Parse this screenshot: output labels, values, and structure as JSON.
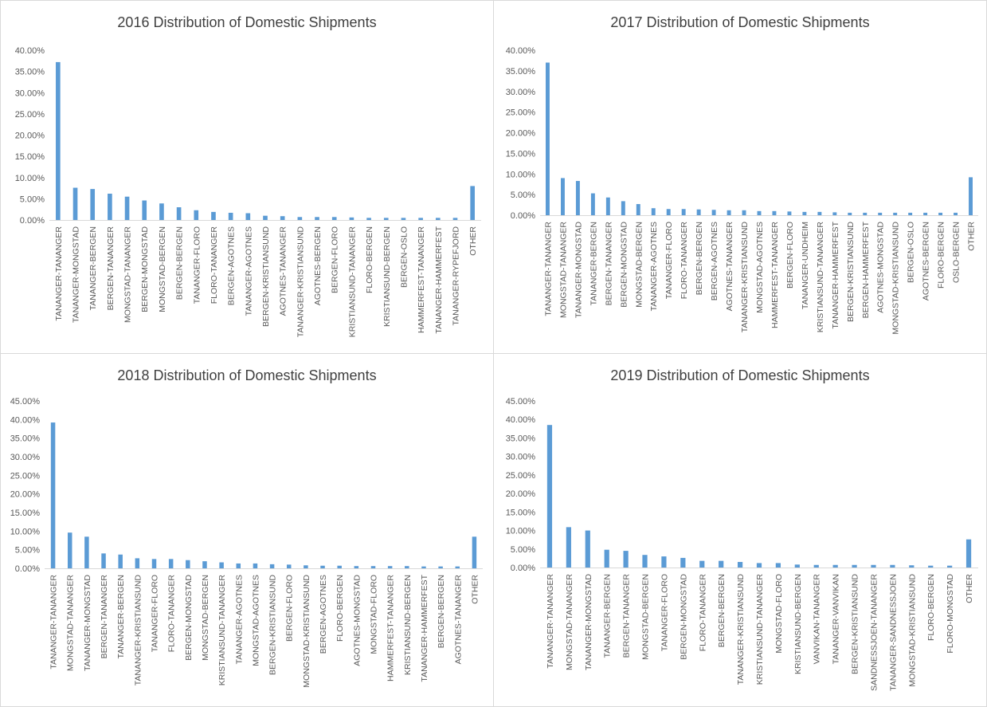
{
  "chart_data": [
    {
      "type": "bar",
      "title": "2016 Distribution of Domestic Shipments",
      "yticks": [
        "0.00%",
        "5.00%",
        "10.00%",
        "15.00%",
        "20.00%",
        "25.00%",
        "30.00%",
        "35.00%",
        "40.00%"
      ],
      "ylim": [
        0,
        40
      ],
      "grid": false,
      "bar_color": "#5b9bd5",
      "categories": [
        "TANANGER-TANANGER",
        "TANANGER-MONGSTAD",
        "TANANGER-BERGEN",
        "BERGEN-TANANGER",
        "MONGSTAD-TANANGER",
        "BERGEN-MONGSTAD",
        "MONGSTAD-BERGEN",
        "BERGEN-BERGEN",
        "TANANGER-FLORO",
        "FLORO-TANANGER",
        "BERGEN-AGOTNES",
        "TANANGER-AGOTNES",
        "BERGEN-KRISTIANSUND",
        "AGOTNES-TANANGER",
        "TANANGER-KRISTIANSUND",
        "AGOTNES-BERGEN",
        "BERGEN-FLORO",
        "KRISTIANSUND-TANANGER",
        "FLORO-BERGEN",
        "KRISTIANSUND-BERGEN",
        "BERGEN-OSLO",
        "HAMMERFEST-TANANGER",
        "TANANGER-HAMMERFEST",
        "TANANGER-RYPEFJORD",
        "OTHER"
      ],
      "values": [
        37.2,
        7.6,
        7.3,
        6.2,
        5.5,
        4.6,
        3.9,
        3.0,
        2.3,
        1.9,
        1.7,
        1.6,
        1.0,
        0.9,
        0.7,
        0.7,
        0.7,
        0.6,
        0.5,
        0.5,
        0.5,
        0.5,
        0.5,
        0.5,
        8.0
      ]
    },
    {
      "type": "bar",
      "title": "2017 Distribution of Domestic Shipments",
      "yticks": [
        "0.00%",
        "5.00%",
        "10.00%",
        "15.00%",
        "20.00%",
        "25.00%",
        "30.00%",
        "35.00%",
        "40.00%"
      ],
      "ylim": [
        0,
        40
      ],
      "grid": false,
      "bar_color": "#5b9bd5",
      "categories": [
        "TANANGER-TANANGER",
        "MONGSTAD-TANANGER",
        "TANANGER-MONGSTAD",
        "TANANGER-BERGEN",
        "BERGEN-TANANGER",
        "BERGEN-MONGSTAD",
        "MONGSTAD-BERGEN",
        "TANANGER-AGOTNES",
        "TANANGER-FLORO",
        "FLORO-TANANGER",
        "BERGEN-BERGEN",
        "BERGEN-AGOTNES",
        "AGOTNES-TANANGER",
        "TANANGER-KRISTIANSUND",
        "MONGSTAD-AGOTNES",
        "HAMMERFEST-TANANGER",
        "BERGEN-FLORO",
        "TANANGER-UNDHEIM",
        "KRISTIANSUND-TANANGER",
        "TANANGER-HAMMERFEST",
        "BERGEN-KRISTIANSUND",
        "BERGEN-HAMMERFEST",
        "AGOTNES-MONGSTAD",
        "MONGSTAD-KRISTIANSUND",
        "BERGEN-OSLO",
        "AGOTNES-BERGEN",
        "FLORO-BERGEN",
        "OSLO-BERGEN",
        "OTHER"
      ],
      "values": [
        37.0,
        9.0,
        8.3,
        5.3,
        4.3,
        3.4,
        2.7,
        1.7,
        1.5,
        1.5,
        1.4,
        1.3,
        1.2,
        1.2,
        1.0,
        1.0,
        0.9,
        0.8,
        0.8,
        0.7,
        0.6,
        0.6,
        0.6,
        0.6,
        0.6,
        0.6,
        0.6,
        0.6,
        9.2
      ]
    },
    {
      "type": "bar",
      "title": "2018 Distribution of Domestic Shipments",
      "yticks": [
        "0.00%",
        "5.00%",
        "10.00%",
        "15.00%",
        "20.00%",
        "25.00%",
        "30.00%",
        "35.00%",
        "40.00%",
        "45.00%"
      ],
      "ylim": [
        0,
        45
      ],
      "grid": false,
      "bar_color": "#5b9bd5",
      "categories": [
        "TANANGER-TANANGER",
        "MONGSTAD-TANANGER",
        "TANANGER-MONGSTAD",
        "BERGEN-TANANGER",
        "TANANGER-BERGEN",
        "TANANGER-KRISTIANSUND",
        "TANANGER-FLORO",
        "FLORO-TANANGER",
        "BERGEN-MONGSTAD",
        "MONGSTAD-BERGEN",
        "KRISTIANSUND-TANANGER",
        "TANANGER-AGOTNES",
        "MONGSTAD-AGOTNES",
        "BERGEN-KRISTIANSUND",
        "BERGEN-FLORO",
        "MONGSTAD-KRISTIANSUND",
        "BERGEN-AGOTNES",
        "FLORO-BERGEN",
        "AGOTNES-MONGSTAD",
        "MONGSTAD-FLORO",
        "HAMMERFEST-TANANGER",
        "KRISTIANSUND-BERGEN",
        "TANANGER-HAMMERFEST",
        "BERGEN-BERGEN",
        "AGOTNES-TANANGER",
        "OTHER"
      ],
      "values": [
        39.2,
        9.6,
        8.5,
        4.0,
        3.7,
        2.7,
        2.5,
        2.5,
        2.2,
        1.9,
        1.6,
        1.3,
        1.3,
        1.1,
        1.0,
        0.8,
        0.7,
        0.7,
        0.6,
        0.6,
        0.6,
        0.6,
        0.5,
        0.5,
        0.5,
        8.5
      ]
    },
    {
      "type": "bar",
      "title": "2019 Distribution of Domestic Shipments",
      "yticks": [
        "0.00%",
        "5.00%",
        "10.00%",
        "15.00%",
        "20.00%",
        "25.00%",
        "30.00%",
        "35.00%",
        "40.00%",
        "45.00%"
      ],
      "ylim": [
        0,
        45
      ],
      "grid": false,
      "bar_color": "#5b9bd5",
      "categories": [
        "TANANGER-TANANGER",
        "MONGSTAD-TANANGER",
        "TANANGER-MONGSTAD",
        "TANANGER-BERGEN",
        "BERGEN-TANANGER",
        "MONGSTAD-BERGEN",
        "TANANGER-FLORO",
        "BERGEN-MONGSTAD",
        "FLORO-TANANGER",
        "BERGEN-BERGEN",
        "TANANGER-KRISTIANSUND",
        "KRISTIANSUND-TANANGER",
        "MONGSTAD-FLORO",
        "KRISTIANSUND-BERGEN",
        "VANVIKAN-TANANGER",
        "TANANGER-VANVIKAN",
        "BERGEN-KRISTIANSUND",
        "SANDNESSJOEN-TANANGER",
        "TANANGER-SANDNESSJOEN",
        "MONGSTAD-KRISTIANSUND",
        "FLORO-BERGEN",
        "FLORO-MONGSTAD",
        "OTHER"
      ],
      "values": [
        38.5,
        10.9,
        10.0,
        4.8,
        4.5,
        3.4,
        3.0,
        2.6,
        1.8,
        1.8,
        1.5,
        1.2,
        1.2,
        0.8,
        0.7,
        0.7,
        0.7,
        0.7,
        0.7,
        0.6,
        0.5,
        0.5,
        7.6
      ]
    }
  ]
}
